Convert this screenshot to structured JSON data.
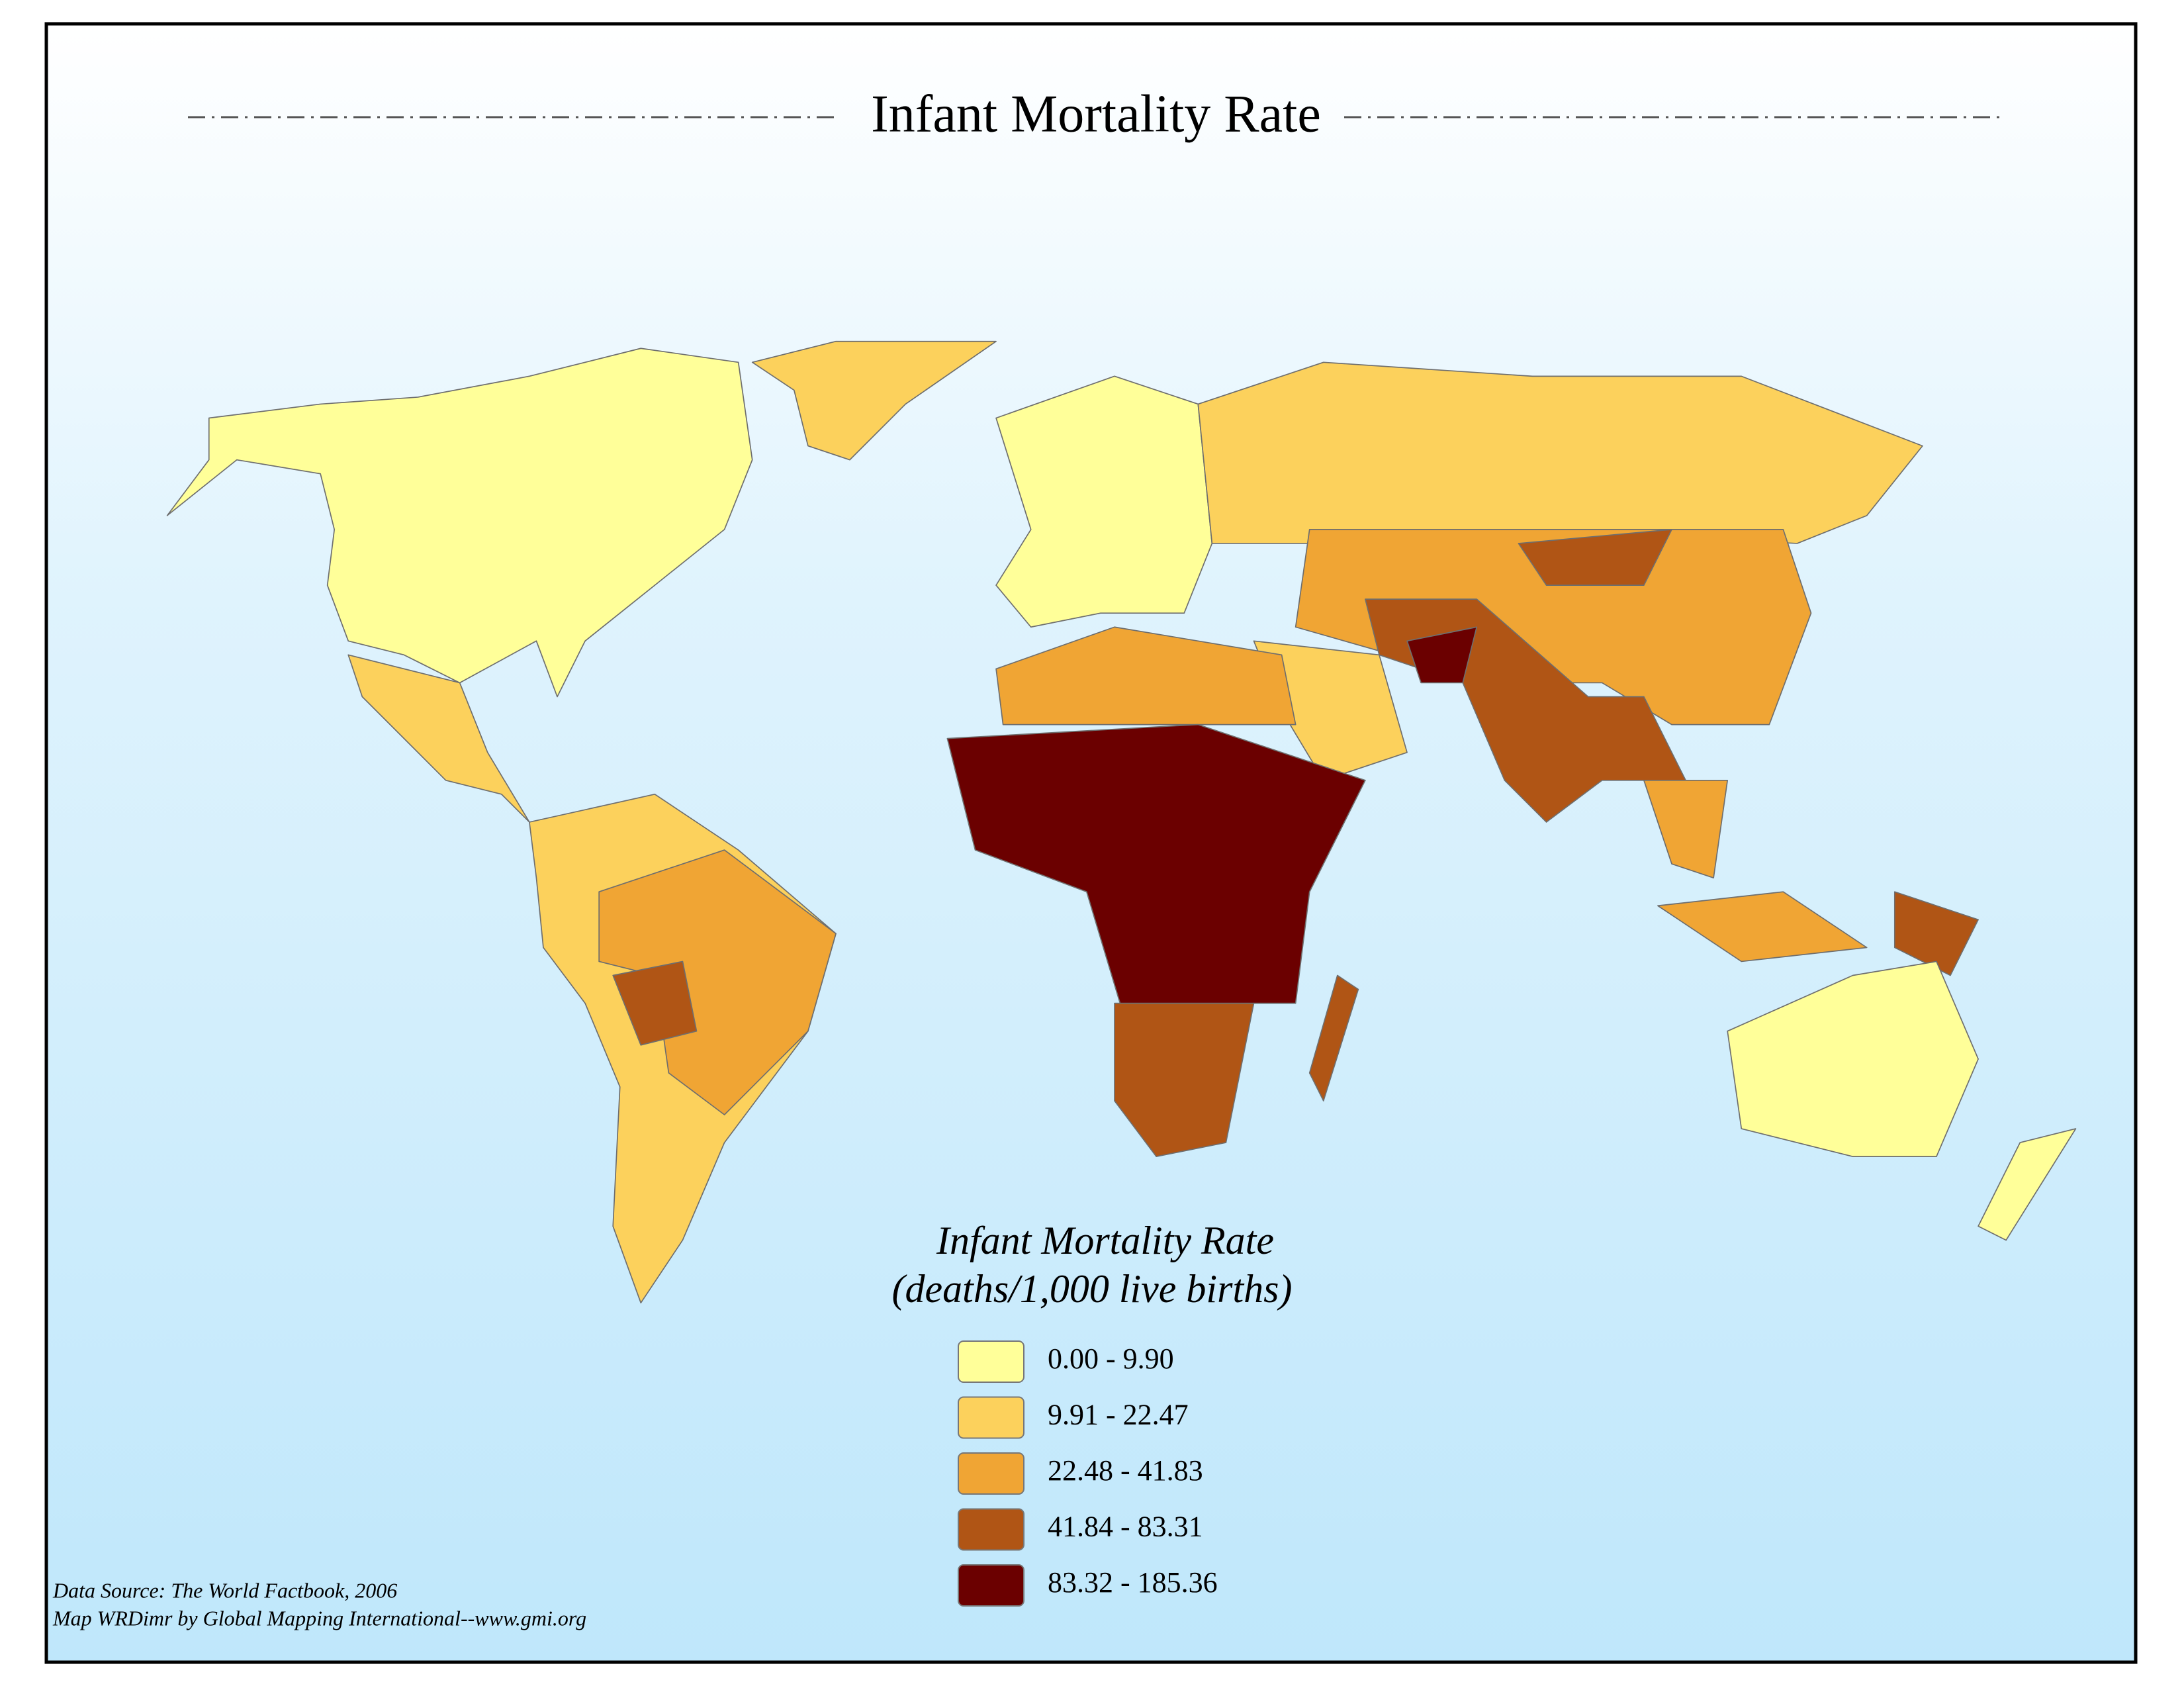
{
  "title": "Infant Mortality Rate",
  "legend": {
    "title": "Infant Mortality Rate",
    "subtitle": "(deaths/1,000 live births)",
    "items": [
      {
        "label": "0.00 - 9.90",
        "color": "#ffff99"
      },
      {
        "label": "9.91 - 22.47",
        "color": "#fcd15c"
      },
      {
        "label": "22.48 - 41.83",
        "color": "#f0a534"
      },
      {
        "label": "41.84 - 83.31",
        "color": "#b05515"
      },
      {
        "label": "83.32 - 185.36",
        "color": "#6b0000"
      }
    ]
  },
  "footer": [
    "Data Source:  The World Factbook, 2006",
    "Map WRDimr by Global Mapping International--www.gmi.org"
  ]
}
